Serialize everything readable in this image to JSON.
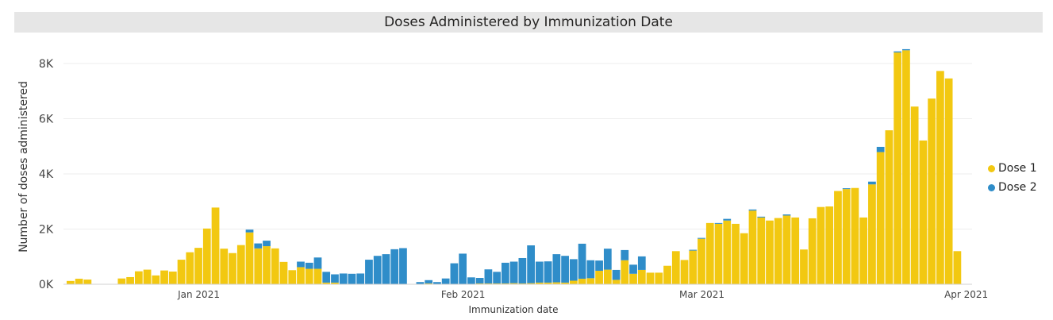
{
  "chart_data": {
    "type": "bar",
    "stacked": true,
    "title": "Doses Administered by Immunization Date",
    "xlabel": "Immunization date",
    "ylabel": "Number of doses administered",
    "ylim": [
      0,
      8500
    ],
    "yticks": [
      0,
      2000,
      4000,
      6000,
      8000
    ],
    "ytick_labels": [
      "0K",
      "2K",
      "4K",
      "6K",
      "8K"
    ],
    "grid": true,
    "legend_position": "right",
    "x_start": "2020-12-17",
    "x_end": "2021-03-31",
    "xticks": [
      {
        "date": "2021-01-01",
        "label": "Jan 2021"
      },
      {
        "date": "2021-02-01",
        "label": "Feb 2021"
      },
      {
        "date": "2021-03-01",
        "label": "Mar 2021"
      },
      {
        "date": "2021-04-01",
        "label": "Apr 2021"
      }
    ],
    "dates": [
      "2020-12-17",
      "2020-12-18",
      "2020-12-19",
      "2020-12-20",
      "2020-12-21",
      "2020-12-22",
      "2020-12-23",
      "2020-12-24",
      "2020-12-25",
      "2020-12-26",
      "2020-12-27",
      "2020-12-28",
      "2020-12-29",
      "2020-12-30",
      "2020-12-31",
      "2021-01-01",
      "2021-01-02",
      "2021-01-03",
      "2021-01-04",
      "2021-01-05",
      "2021-01-06",
      "2021-01-07",
      "2021-01-08",
      "2021-01-09",
      "2021-01-10",
      "2021-01-11",
      "2021-01-12",
      "2021-01-13",
      "2021-01-14",
      "2021-01-15",
      "2021-01-16",
      "2021-01-17",
      "2021-01-18",
      "2021-01-19",
      "2021-01-20",
      "2021-01-21",
      "2021-01-22",
      "2021-01-23",
      "2021-01-24",
      "2021-01-25",
      "2021-01-26",
      "2021-01-27",
      "2021-01-28",
      "2021-01-29",
      "2021-01-30",
      "2021-01-31",
      "2021-02-01",
      "2021-02-02",
      "2021-02-03",
      "2021-02-04",
      "2021-02-05",
      "2021-02-06",
      "2021-02-07",
      "2021-02-08",
      "2021-02-09",
      "2021-02-10",
      "2021-02-11",
      "2021-02-12",
      "2021-02-13",
      "2021-02-14",
      "2021-02-15",
      "2021-02-16",
      "2021-02-17",
      "2021-02-18",
      "2021-02-19",
      "2021-02-20",
      "2021-02-21",
      "2021-02-22",
      "2021-02-23",
      "2021-02-24",
      "2021-02-25",
      "2021-02-26",
      "2021-02-27",
      "2021-02-28",
      "2021-03-01",
      "2021-03-02",
      "2021-03-03",
      "2021-03-04",
      "2021-03-05",
      "2021-03-06",
      "2021-03-07",
      "2021-03-08",
      "2021-03-09",
      "2021-03-10",
      "2021-03-11",
      "2021-03-12",
      "2021-03-13",
      "2021-03-14",
      "2021-03-15",
      "2021-03-16",
      "2021-03-17",
      "2021-03-18",
      "2021-03-19",
      "2021-03-20",
      "2021-03-21",
      "2021-03-22",
      "2021-03-23",
      "2021-03-24",
      "2021-03-25",
      "2021-03-26",
      "2021-03-27",
      "2021-03-28",
      "2021-03-29",
      "2021-03-30",
      "2021-03-31"
    ],
    "series": [
      {
        "name": "Dose 1",
        "color": "#F2C811",
        "values": [
          120,
          200,
          170,
          0,
          0,
          0,
          210,
          260,
          470,
          530,
          320,
          500,
          460,
          890,
          1160,
          1320,
          2020,
          2780,
          1290,
          1130,
          1420,
          1880,
          1300,
          1380,
          1300,
          810,
          510,
          620,
          560,
          560,
          60,
          60,
          0,
          0,
          0,
          0,
          0,
          0,
          0,
          0,
          0,
          0,
          30,
          0,
          0,
          0,
          0,
          0,
          30,
          30,
          30,
          30,
          40,
          30,
          40,
          60,
          60,
          70,
          60,
          130,
          200,
          220,
          490,
          530,
          160,
          870,
          380,
          520,
          420,
          420,
          670,
          1200,
          880,
          1220,
          1650,
          2220,
          2190,
          2310,
          2190,
          1850,
          2670,
          2420,
          2310,
          2400,
          2490,
          2420,
          1260,
          2390,
          2800,
          2820,
          3380,
          3450,
          3490,
          2420,
          3620,
          4790,
          5580,
          8400,
          8480,
          6440,
          5210,
          6730,
          7730,
          7460,
          1200
        ]
      },
      {
        "name": "Dose 2",
        "color": "#2F8DC9",
        "values": [
          0,
          0,
          0,
          0,
          0,
          0,
          0,
          0,
          0,
          0,
          0,
          0,
          0,
          0,
          0,
          0,
          0,
          0,
          0,
          0,
          0,
          100,
          180,
          200,
          0,
          0,
          0,
          200,
          220,
          410,
          390,
          300,
          390,
          380,
          390,
          890,
          1030,
          1090,
          1270,
          1310,
          0,
          80,
          120,
          80,
          210,
          760,
          1110,
          250,
          200,
          510,
          420,
          750,
          780,
          920,
          1370,
          760,
          770,
          1020,
          970,
          780,
          1270,
          650,
          370,
          760,
          360,
          370,
          330,
          490,
          0,
          0,
          0,
          0,
          0,
          30,
          30,
          0,
          30,
          60,
          0,
          0,
          40,
          30,
          0,
          0,
          40,
          0,
          0,
          0,
          0,
          0,
          0,
          30,
          0,
          0,
          100,
          190,
          0,
          40,
          40,
          0,
          0,
          0,
          0,
          0,
          0
        ]
      }
    ]
  }
}
